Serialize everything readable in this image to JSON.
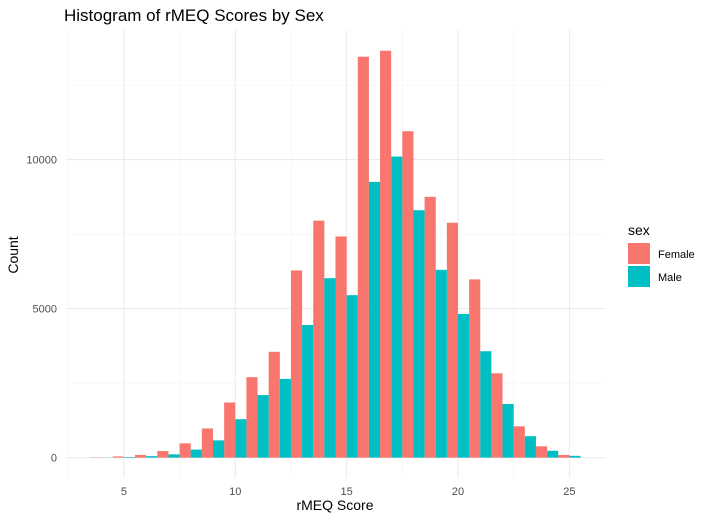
{
  "chart_data": {
    "type": "bar",
    "title": "Histogram of rMEQ Scores by Sex",
    "xlabel": "rMEQ Score",
    "ylabel": "Count",
    "x": [
      4,
      5,
      6,
      7,
      8,
      9,
      10,
      11,
      12,
      13,
      14,
      15,
      16,
      17,
      18,
      19,
      20,
      21,
      22,
      23,
      24,
      25
    ],
    "series": [
      {
        "name": "Female",
        "color": "#F8766D",
        "values": [
          10,
          40,
          90,
          220,
          480,
          980,
          1850,
          2700,
          3550,
          6280,
          7950,
          7420,
          13450,
          13650,
          10950,
          8750,
          7880,
          5980,
          2830,
          1050,
          380,
          90
        ]
      },
      {
        "name": "Male",
        "color": "#00BFC4",
        "values": [
          5,
          20,
          50,
          110,
          270,
          580,
          1290,
          2100,
          2640,
          4450,
          6020,
          5450,
          9250,
          10100,
          8300,
          6300,
          4820,
          3570,
          1800,
          720,
          230,
          60
        ]
      }
    ],
    "xlim": [
      2.4,
      26.6
    ],
    "ylim": [
      -683,
      14346
    ],
    "xticks": [
      5,
      10,
      15,
      20,
      25
    ],
    "yticks": [
      0,
      5000,
      10000
    ],
    "ytick_labels": [
      "0",
      "5000",
      "10000"
    ],
    "grid": true,
    "legend": {
      "title": "sex",
      "position": "right",
      "entries": [
        "Female",
        "Male"
      ]
    }
  }
}
